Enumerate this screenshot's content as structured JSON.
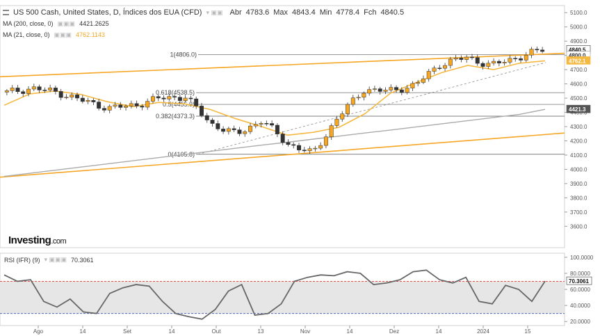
{
  "header": {
    "title": "US 500 Cash, United States, D, Índices dos EUA (CFD)",
    "ohlc": [
      {
        "label": "Abr",
        "value": "4783.6"
      },
      {
        "label": "Max",
        "value": "4843.4"
      },
      {
        "label": "Min",
        "value": "4778.4"
      },
      {
        "label": "Fch",
        "value": "4840.5"
      }
    ],
    "indicators": [
      {
        "label": "MA (200, close, 0)",
        "value": "4421.2625",
        "color": "#888888"
      },
      {
        "label": "MA (21, close, 0)",
        "value": "4762.1143",
        "color": "#f5a623"
      }
    ]
  },
  "logo": {
    "brand": "Investing",
    "suffix": ".com"
  },
  "rsi_header": {
    "label": "RSI (IFR) (9)",
    "value": "70.3061"
  },
  "colors": {
    "up": "#f5a623",
    "down": "#333333",
    "ma21": "#f5b840",
    "ma200": "#aaaaaa",
    "channel": "#f5a623",
    "rsi_line": "#666666",
    "rsi_band": "#e6e6e6",
    "rsi_upper": "#e53935",
    "rsi_lower": "#3f51b5"
  },
  "chart_data": [
    {
      "type": "candlestick",
      "title": "US 500 Cash, United States, D, Índices dos EUA (CFD)",
      "ylim": [
        3450,
        5150
      ],
      "y_ticks": [
        "5100.0",
        "5000.0",
        "4900.0",
        "4800.0",
        "4700.0",
        "4600.0",
        "4500.0",
        "4400.0",
        "4300.0",
        "4200.0",
        "4100.0",
        "4000.0",
        "3900.0",
        "3800.0",
        "3700.0",
        "3600.0"
      ],
      "x_ticks": [
        "Ago",
        "14",
        "Set",
        "14",
        "Out",
        "13",
        "Nov",
        "14",
        "Dez",
        "14",
        "2024",
        "15"
      ],
      "price_labels": [
        {
          "text": "4840.5",
          "value": 4840.5,
          "style": "last"
        },
        {
          "text": "4800.0",
          "value": 4800.0,
          "style": "plain"
        },
        {
          "text": "4762.1",
          "value": 4762.1,
          "style": "ma21"
        },
        {
          "text": "4421.3",
          "value": 4421.3,
          "style": "ma200"
        }
      ],
      "fibonacci": [
        {
          "label": "1(4806.0)",
          "value": 4806.0
        },
        {
          "label": "0.618(4538.5)",
          "value": 4538.5
        },
        {
          "label": "0.5(4455.9)",
          "value": 4455.9
        },
        {
          "label": "0.382(4373.3)",
          "value": 4373.3
        },
        {
          "label": "0(4105.8)",
          "value": 4105.8
        }
      ],
      "series": [
        {
          "name": "MA (200, close, 0)",
          "values": [
            3950,
            3972,
            3994,
            4016,
            4038,
            4060,
            4082,
            4104,
            4126,
            4148,
            4170,
            4190,
            4212,
            4233,
            4255,
            4276,
            4298,
            4320,
            4342,
            4364,
            4386,
            4421
          ]
        },
        {
          "name": "MA (21, close, 0)",
          "values": [
            4450,
            4530,
            4550,
            4525,
            4475,
            4440,
            4470,
            4460,
            4420,
            4355,
            4300,
            4240,
            4260,
            4295,
            4390,
            4535,
            4610,
            4680,
            4730,
            4700,
            4745,
            4762
          ]
        },
        {
          "name": "US 500 Cash",
          "values": [
            4540,
            4570,
            4540,
            4480,
            4430,
            4450,
            4500,
            4510,
            4320,
            4245,
            4345,
            4180,
            4110,
            4370,
            4560,
            4550,
            4590,
            4740,
            4785,
            4730,
            4785,
            4840
          ]
        }
      ],
      "channel_lines": [
        {
          "from": 4650,
          "to": 4815
        },
        {
          "from": 3945,
          "to": 4255
        }
      ],
      "trend_line": {
        "from": 4105.8,
        "to": 4750
      }
    },
    {
      "type": "line",
      "title": "RSI (IFR) (9)",
      "ylim": [
        15,
        105
      ],
      "y_ticks": [
        "100.0000",
        "80.0000",
        "60.0000",
        "40.0000",
        "20.0000"
      ],
      "levels": [
        70,
        30
      ],
      "last": "70.3061",
      "values": [
        78,
        70,
        72,
        45,
        38,
        48,
        32,
        30,
        55,
        62,
        66,
        64,
        45,
        30,
        26,
        23,
        35,
        58,
        66,
        28,
        30,
        42,
        70,
        75,
        78,
        77,
        82,
        80,
        66,
        68,
        72,
        82,
        84,
        72,
        68,
        75,
        45,
        42,
        65,
        60,
        45,
        70.3
      ]
    }
  ]
}
